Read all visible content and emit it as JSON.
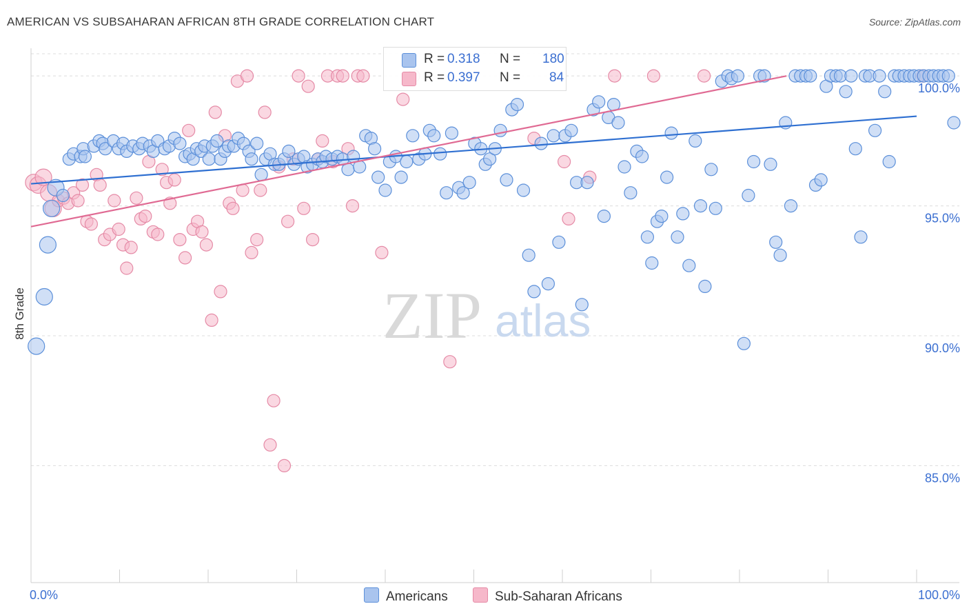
{
  "title": "AMERICAN VS SUBSAHARAN AFRICAN 8TH GRADE CORRELATION CHART",
  "source": "Source: ZipAtlas.com",
  "watermark": {
    "zip": "ZIP",
    "atlas": "atlas"
  },
  "colors": {
    "american_fill": "#a9c4ee",
    "american_stroke": "#5b8fd9",
    "american_line": "#2e6fd1",
    "african_fill": "#f6b8ca",
    "african_stroke": "#e58aa6",
    "african_line": "#e06a93",
    "value_text": "#3b6fd1",
    "grid": "#dcdcdc"
  },
  "legend": {
    "rows": [
      {
        "r_label": "R =",
        "r_value": "0.318",
        "n_label": "N =",
        "n_value": "180"
      },
      {
        "r_label": "R =",
        "r_value": "0.397",
        "n_label": "N =",
        "n_value": "84"
      }
    ]
  },
  "bottom_legend": {
    "american": "Americans",
    "african": "Sub-Saharan Africans"
  },
  "chart_data": {
    "type": "scatter",
    "title": "AMERICAN VS SUBSAHARAN AFRICAN 8TH GRADE CORRELATION CHART",
    "xlabel": "",
    "ylabel": "8th Grade",
    "xlim": [
      0,
      100
    ],
    "ylim": [
      80.5,
      100.8
    ],
    "x_tick_labels": [
      "0.0%",
      "100.0%"
    ],
    "y_ticks": [
      85,
      90,
      95,
      100
    ],
    "y_tick_labels": [
      "85.0%",
      "90.0%",
      "95.0%",
      "100.0%"
    ],
    "grid": true,
    "legend_position": "top-center",
    "series": [
      {
        "name": "Americans",
        "r": 0.318,
        "n": 180,
        "trend": {
          "x": [
            0,
            100
          ],
          "y": [
            95.85,
            98.45
          ]
        },
        "points": [
          [
            0.6,
            89.6
          ],
          [
            1.5,
            91.5
          ],
          [
            1.9,
            93.5
          ],
          [
            2.3,
            94.9
          ],
          [
            2.8,
            95.7
          ],
          [
            3.6,
            95.4
          ],
          [
            4.3,
            96.8
          ],
          [
            4.8,
            97.0
          ],
          [
            5.6,
            96.9
          ],
          [
            5.9,
            97.2
          ],
          [
            6.1,
            96.9
          ],
          [
            7.1,
            97.3
          ],
          [
            7.7,
            97.5
          ],
          [
            8.1,
            97.4
          ],
          [
            8.4,
            97.2
          ],
          [
            9.3,
            97.5
          ],
          [
            9.9,
            97.2
          ],
          [
            10.4,
            97.4
          ],
          [
            10.8,
            97.1
          ],
          [
            11.5,
            97.3
          ],
          [
            12.2,
            97.2
          ],
          [
            12.6,
            97.4
          ],
          [
            13.4,
            97.3
          ],
          [
            13.8,
            97.1
          ],
          [
            14.3,
            97.5
          ],
          [
            15.1,
            97.2
          ],
          [
            15.6,
            97.3
          ],
          [
            16.2,
            97.6
          ],
          [
            16.8,
            97.4
          ],
          [
            17.4,
            96.9
          ],
          [
            17.9,
            97.0
          ],
          [
            18.3,
            96.8
          ],
          [
            18.7,
            97.2
          ],
          [
            19.2,
            97.1
          ],
          [
            19.6,
            97.3
          ],
          [
            20.1,
            96.8
          ],
          [
            20.5,
            97.3
          ],
          [
            21.0,
            97.5
          ],
          [
            21.4,
            96.8
          ],
          [
            21.9,
            97.1
          ],
          [
            22.3,
            97.3
          ],
          [
            22.9,
            97.3
          ],
          [
            23.4,
            97.6
          ],
          [
            24.0,
            97.4
          ],
          [
            24.6,
            97.1
          ],
          [
            24.9,
            96.8
          ],
          [
            25.5,
            97.4
          ],
          [
            26.0,
            96.2
          ],
          [
            26.5,
            96.8
          ],
          [
            27.0,
            97.0
          ],
          [
            27.5,
            96.6
          ],
          [
            28.0,
            96.6
          ],
          [
            28.6,
            96.8
          ],
          [
            29.1,
            97.1
          ],
          [
            29.7,
            96.6
          ],
          [
            30.2,
            96.8
          ],
          [
            30.8,
            96.9
          ],
          [
            31.2,
            96.5
          ],
          [
            31.8,
            96.6
          ],
          [
            32.4,
            96.8
          ],
          [
            32.9,
            96.7
          ],
          [
            33.3,
            96.9
          ],
          [
            34.0,
            96.8
          ],
          [
            34.6,
            96.9
          ],
          [
            35.2,
            96.8
          ],
          [
            35.8,
            96.4
          ],
          [
            36.4,
            96.9
          ],
          [
            37.1,
            96.5
          ],
          [
            37.8,
            97.7
          ],
          [
            38.4,
            97.6
          ],
          [
            38.8,
            97.2
          ],
          [
            39.2,
            96.1
          ],
          [
            40.0,
            95.6
          ],
          [
            40.5,
            96.7
          ],
          [
            41.2,
            96.9
          ],
          [
            41.8,
            96.1
          ],
          [
            42.4,
            96.7
          ],
          [
            43.1,
            97.7
          ],
          [
            43.8,
            96.8
          ],
          [
            44.5,
            97.0
          ],
          [
            45.0,
            97.9
          ],
          [
            45.5,
            97.7
          ],
          [
            46.2,
            97.0
          ],
          [
            46.9,
            95.5
          ],
          [
            47.5,
            97.8
          ],
          [
            48.3,
            95.7
          ],
          [
            48.8,
            95.5
          ],
          [
            49.5,
            95.9
          ],
          [
            50.1,
            97.4
          ],
          [
            50.8,
            97.2
          ],
          [
            51.3,
            96.6
          ],
          [
            51.8,
            96.8
          ],
          [
            52.4,
            97.2
          ],
          [
            53.0,
            97.9
          ],
          [
            53.7,
            96.0
          ],
          [
            54.3,
            98.7
          ],
          [
            54.9,
            98.9
          ],
          [
            55.6,
            95.6
          ],
          [
            56.2,
            93.1
          ],
          [
            56.8,
            91.7
          ],
          [
            57.6,
            97.4
          ],
          [
            58.4,
            92.0
          ],
          [
            59.0,
            97.7
          ],
          [
            59.6,
            93.6
          ],
          [
            60.3,
            97.7
          ],
          [
            61.0,
            97.9
          ],
          [
            61.6,
            95.9
          ],
          [
            62.2,
            91.2
          ],
          [
            62.8,
            95.9
          ],
          [
            63.5,
            98.7
          ],
          [
            64.1,
            99.0
          ],
          [
            64.7,
            94.6
          ],
          [
            65.2,
            98.4
          ],
          [
            65.8,
            98.9
          ],
          [
            66.3,
            98.2
          ],
          [
            67.0,
            96.5
          ],
          [
            67.7,
            95.5
          ],
          [
            68.4,
            97.1
          ],
          [
            69.0,
            96.9
          ],
          [
            69.6,
            93.8
          ],
          [
            70.1,
            92.8
          ],
          [
            70.7,
            94.4
          ],
          [
            71.2,
            94.6
          ],
          [
            71.8,
            96.1
          ],
          [
            72.3,
            97.8
          ],
          [
            73.0,
            93.8
          ],
          [
            73.6,
            94.7
          ],
          [
            74.3,
            92.7
          ],
          [
            75.0,
            97.5
          ],
          [
            75.6,
            95.0
          ],
          [
            76.1,
            91.9
          ],
          [
            76.8,
            96.4
          ],
          [
            77.3,
            94.9
          ],
          [
            78.0,
            99.8
          ],
          [
            78.7,
            100.0
          ],
          [
            79.1,
            99.9
          ],
          [
            79.8,
            100.0
          ],
          [
            80.5,
            89.7
          ],
          [
            81.0,
            95.4
          ],
          [
            81.6,
            96.7
          ],
          [
            82.3,
            100.0
          ],
          [
            82.8,
            100.0
          ],
          [
            83.5,
            96.6
          ],
          [
            84.1,
            93.6
          ],
          [
            84.6,
            93.1
          ],
          [
            85.2,
            98.2
          ],
          [
            85.8,
            95.0
          ],
          [
            86.3,
            100.0
          ],
          [
            86.9,
            100.0
          ],
          [
            87.5,
            100.0
          ],
          [
            88.0,
            100.0
          ],
          [
            88.6,
            95.8
          ],
          [
            89.2,
            96.0
          ],
          [
            89.8,
            99.6
          ],
          [
            90.3,
            100.0
          ],
          [
            90.9,
            100.0
          ],
          [
            91.4,
            100.0
          ],
          [
            92.0,
            99.4
          ],
          [
            92.6,
            100.0
          ],
          [
            93.1,
            97.2
          ],
          [
            93.7,
            93.8
          ],
          [
            94.2,
            100.0
          ],
          [
            94.7,
            100.0
          ],
          [
            95.3,
            97.9
          ],
          [
            95.8,
            100.0
          ],
          [
            96.4,
            99.4
          ],
          [
            96.9,
            96.7
          ],
          [
            97.5,
            100.0
          ],
          [
            98.0,
            100.0
          ],
          [
            98.6,
            100.0
          ],
          [
            99.2,
            100.0
          ],
          [
            99.7,
            100.0
          ],
          [
            100.3,
            100.0
          ],
          [
            100.8,
            100.0
          ],
          [
            101.4,
            100.0
          ],
          [
            101.9,
            100.0
          ],
          [
            102.5,
            100.0
          ],
          [
            103.0,
            100.0
          ],
          [
            103.6,
            100.0
          ],
          [
            104.2,
            98.2
          ]
        ]
      },
      {
        "name": "Sub-Saharan Africans",
        "r": 0.397,
        "n": 84,
        "trend": {
          "x": [
            0,
            85.3
          ],
          "y": [
            94.2,
            100.0
          ]
        },
        "points": [
          [
            0.3,
            95.9
          ],
          [
            0.8,
            95.8
          ],
          [
            1.4,
            96.1
          ],
          [
            2.0,
            95.5
          ],
          [
            2.5,
            94.9
          ],
          [
            3.1,
            95.2
          ],
          [
            3.7,
            95.3
          ],
          [
            4.2,
            95.1
          ],
          [
            4.8,
            95.5
          ],
          [
            5.3,
            95.2
          ],
          [
            5.8,
            95.8
          ],
          [
            6.3,
            94.4
          ],
          [
            6.8,
            94.3
          ],
          [
            7.4,
            96.2
          ],
          [
            7.8,
            95.8
          ],
          [
            8.3,
            93.7
          ],
          [
            8.9,
            93.9
          ],
          [
            9.4,
            95.2
          ],
          [
            9.9,
            94.1
          ],
          [
            10.4,
            93.5
          ],
          [
            10.8,
            92.6
          ],
          [
            11.3,
            93.4
          ],
          [
            11.9,
            95.3
          ],
          [
            12.4,
            94.5
          ],
          [
            12.9,
            94.6
          ],
          [
            13.3,
            96.7
          ],
          [
            13.8,
            94.0
          ],
          [
            14.3,
            93.9
          ],
          [
            14.8,
            96.4
          ],
          [
            15.3,
            95.9
          ],
          [
            15.7,
            95.1
          ],
          [
            16.2,
            96.0
          ],
          [
            16.8,
            93.7
          ],
          [
            17.4,
            93.0
          ],
          [
            17.8,
            97.9
          ],
          [
            18.3,
            94.1
          ],
          [
            18.8,
            94.4
          ],
          [
            19.3,
            94.0
          ],
          [
            19.8,
            93.5
          ],
          [
            20.4,
            90.6
          ],
          [
            20.8,
            98.6
          ],
          [
            21.4,
            91.7
          ],
          [
            21.9,
            97.7
          ],
          [
            22.4,
            95.1
          ],
          [
            22.8,
            94.9
          ],
          [
            23.3,
            99.8
          ],
          [
            23.9,
            95.6
          ],
          [
            24.4,
            100.0
          ],
          [
            24.9,
            93.2
          ],
          [
            25.5,
            93.7
          ],
          [
            25.9,
            95.6
          ],
          [
            26.4,
            98.6
          ],
          [
            27.0,
            85.8
          ],
          [
            27.4,
            87.5
          ],
          [
            28.0,
            96.5
          ],
          [
            28.6,
            85.0
          ],
          [
            29.0,
            94.4
          ],
          [
            29.6,
            96.8
          ],
          [
            30.2,
            100.0
          ],
          [
            30.8,
            94.9
          ],
          [
            31.3,
            99.6
          ],
          [
            31.8,
            93.7
          ],
          [
            32.4,
            96.8
          ],
          [
            32.9,
            97.5
          ],
          [
            33.5,
            100.0
          ],
          [
            34.1,
            96.7
          ],
          [
            34.6,
            100.0
          ],
          [
            35.2,
            100.0
          ],
          [
            35.8,
            97.2
          ],
          [
            36.3,
            95.0
          ],
          [
            36.9,
            100.0
          ],
          [
            37.5,
            100.0
          ],
          [
            39.6,
            93.2
          ],
          [
            42.0,
            99.1
          ],
          [
            43.2,
            100.0
          ],
          [
            47.3,
            89.0
          ],
          [
            56.8,
            97.6
          ],
          [
            60.2,
            96.7
          ],
          [
            60.7,
            94.5
          ],
          [
            63.1,
            96.1
          ],
          [
            65.9,
            100.0
          ],
          [
            70.3,
            100.0
          ],
          [
            76.0,
            100.0
          ],
          [
            100.7,
            100.0
          ]
        ]
      }
    ]
  }
}
